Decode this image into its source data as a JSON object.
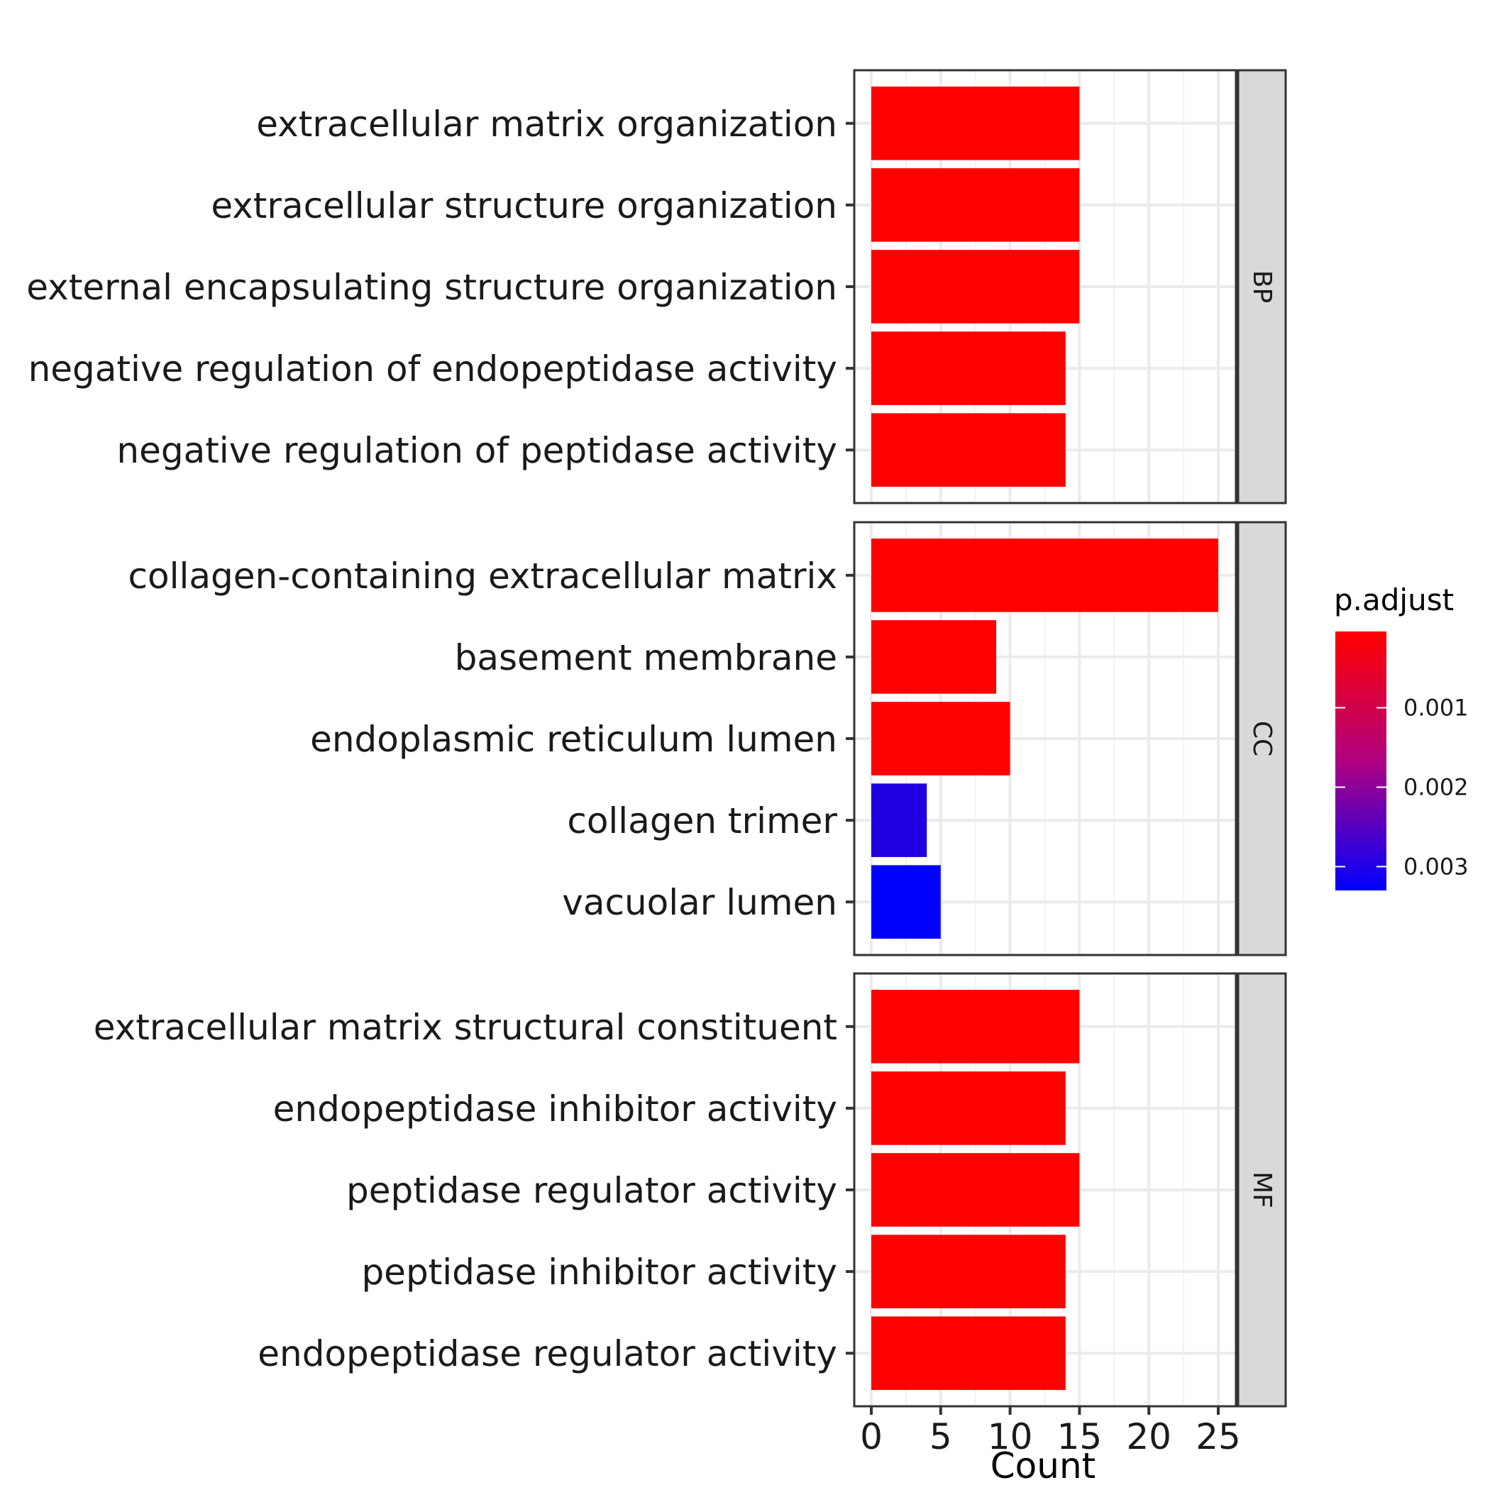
{
  "chart_data": {
    "type": "bar",
    "orientation": "horizontal",
    "xlabel": "Count",
    "xlim": [
      0,
      26.2
    ],
    "x_ticks": [
      0,
      5,
      10,
      15,
      20,
      25
    ],
    "grid": true,
    "facets": [
      {
        "name": "BP",
        "categories": [
          "extracellular matrix organization",
          "extracellular structure organization",
          "external encapsulating structure organization",
          "negative regulation of endopeptidase activity",
          "negative regulation of peptidase activity"
        ],
        "values": [
          15,
          15,
          15,
          14,
          14
        ],
        "p_adjust": [
          4e-05,
          4e-05,
          4e-05,
          4e-05,
          4e-05
        ]
      },
      {
        "name": "CC",
        "categories": [
          "collagen-containing extracellular matrix",
          "basement membrane",
          "endoplasmic reticulum lumen",
          "collagen trimer",
          "vacuolar lumen"
        ],
        "values": [
          25,
          9,
          10,
          4,
          5
        ],
        "p_adjust": [
          4e-05,
          5e-05,
          6e-05,
          0.0029,
          0.0033
        ]
      },
      {
        "name": "MF",
        "categories": [
          "extracellular matrix structural constituent",
          "endopeptidase inhibitor activity",
          "peptidase regulator activity",
          "peptidase inhibitor activity",
          "endopeptidase regulator activity"
        ],
        "values": [
          15,
          14,
          15,
          14,
          14
        ],
        "p_adjust": [
          4e-05,
          4e-05,
          4e-05,
          4e-05,
          4e-05
        ]
      }
    ],
    "legend": {
      "title": "p.adjust",
      "position": "right",
      "range": [
        4e-05,
        0.0033
      ],
      "ticks": [
        0.001,
        0.002,
        0.003
      ],
      "tick_labels": [
        "0.001",
        "0.002",
        "0.003"
      ],
      "low_color": "#ff0000",
      "high_color": "#0000ff"
    }
  }
}
